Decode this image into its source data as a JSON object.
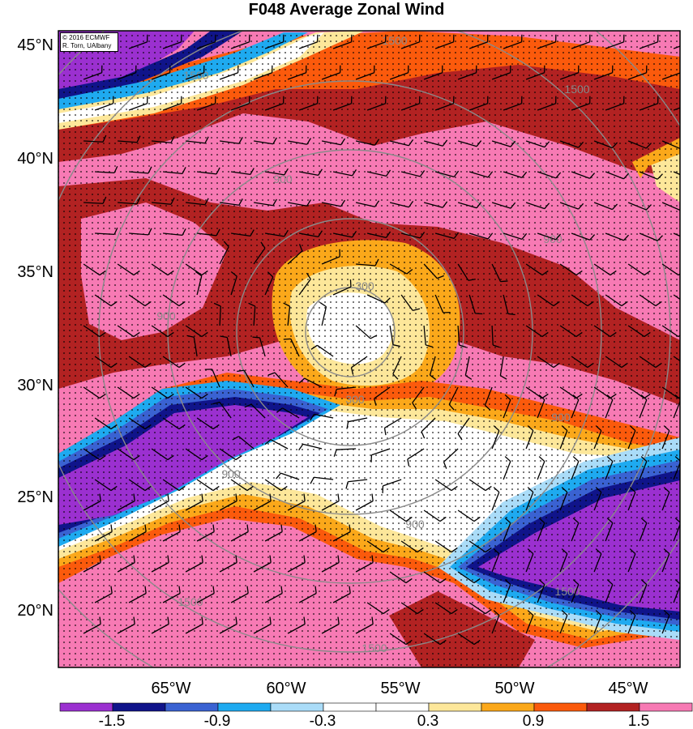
{
  "title": "F048 Average Zonal Wind",
  "credit": {
    "line1": "© 2016 ECMWF",
    "line2": "R. Torn, UAlbany"
  },
  "lat_labels": [
    "45°N",
    "40°N",
    "35°N",
    "30°N",
    "25°N",
    "20°N"
  ],
  "lon_labels": [
    "65°W",
    "60°W",
    "55°W",
    "50°W",
    "45°W"
  ],
  "range_rings": {
    "labels": [
      "300",
      "900",
      "1500"
    ]
  },
  "colorbar": {
    "colors": [
      "#9b30d0",
      "#10148a",
      "#3a62d2",
      "#1eaaf0",
      "#aadcf8",
      "#ffffff",
      "#ffffff",
      "#fde79a",
      "#fba81a",
      "#fb5a0c",
      "#b22222",
      "#f77ab4"
    ],
    "labels": [
      "-1.5",
      "-0.9",
      "-0.3",
      "0.3",
      "0.9",
      "1.5"
    ]
  },
  "palette": {
    "purple": "#9b30d0",
    "navy": "#10148a",
    "blue": "#3a62d2",
    "sky": "#1eaaf0",
    "pale_blue": "#aadcf8",
    "white": "#ffffff",
    "pale_yellow": "#fde79a",
    "orange": "#fba81a",
    "red_orange": "#fb5a0c",
    "dark_red": "#b22222",
    "pink": "#f77ab4",
    "ring": "#8a8a8a"
  }
}
